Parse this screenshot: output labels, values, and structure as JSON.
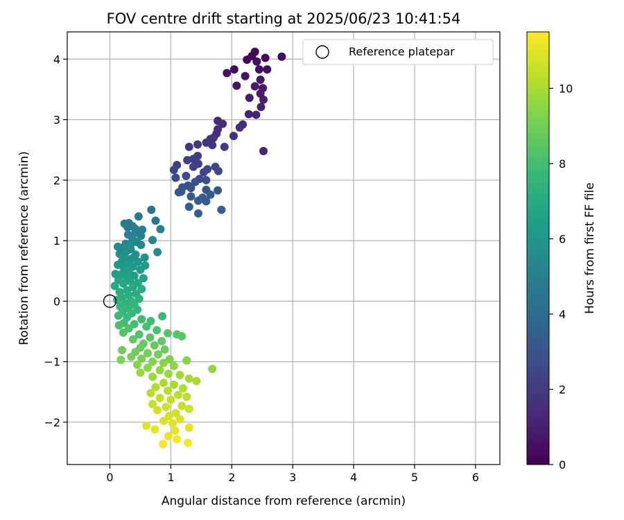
{
  "chart_data": {
    "type": "scatter",
    "title": "FOV centre drift starting at 2025/06/23 10:41:54",
    "xlabel": "Angular distance from reference (arcmin)",
    "ylabel": "Rotation from reference (arcmin)",
    "xlim": [
      -0.7,
      6.4
    ],
    "ylim": [
      -2.7,
      4.45
    ],
    "xticks": [
      0,
      1,
      2,
      3,
      4,
      5,
      6
    ],
    "yticks": [
      -2,
      -1,
      0,
      1,
      2,
      3,
      4
    ],
    "grid": true,
    "legend": {
      "placement": "top-right",
      "entries": [
        "Reference platepar"
      ]
    },
    "reference_point": {
      "x": 0,
      "y": 0,
      "label": "Reference platepar"
    },
    "colorbar": {
      "label": "Hours from first FF file",
      "colormap": "viridis",
      "range": [
        0,
        11.5
      ],
      "ticks": [
        0,
        2,
        4,
        6,
        8,
        10
      ]
    },
    "colormap_stops": [
      "#440154",
      "#482878",
      "#3e4989",
      "#31688e",
      "#26828e",
      "#1f9e89",
      "#35b779",
      "#6ece58",
      "#b5de2b",
      "#fde725"
    ],
    "points": [
      {
        "x": 2.38,
        "y": 4.12,
        "t": 0.1
      },
      {
        "x": 2.33,
        "y": 4.05,
        "t": 0.2
      },
      {
        "x": 2.25,
        "y": 3.99,
        "t": 0.2
      },
      {
        "x": 2.82,
        "y": 4.04,
        "t": 0.3
      },
      {
        "x": 2.55,
        "y": 4.02,
        "t": 0.3
      },
      {
        "x": 2.41,
        "y": 3.96,
        "t": 0.4
      },
      {
        "x": 2.04,
        "y": 3.83,
        "t": 0.4
      },
      {
        "x": 2.45,
        "y": 3.83,
        "t": 0.5
      },
      {
        "x": 2.58,
        "y": 3.83,
        "t": 0.5
      },
      {
        "x": 1.92,
        "y": 3.77,
        "t": 0.6
      },
      {
        "x": 2.22,
        "y": 3.72,
        "t": 0.6
      },
      {
        "x": 2.47,
        "y": 3.66,
        "t": 0.7
      },
      {
        "x": 2.08,
        "y": 3.56,
        "t": 0.7
      },
      {
        "x": 2.38,
        "y": 3.55,
        "t": 0.8
      },
      {
        "x": 2.51,
        "y": 3.52,
        "t": 0.8
      },
      {
        "x": 2.47,
        "y": 3.43,
        "t": 0.9
      },
      {
        "x": 2.29,
        "y": 3.36,
        "t": 0.9
      },
      {
        "x": 2.52,
        "y": 3.33,
        "t": 1.0
      },
      {
        "x": 2.48,
        "y": 3.21,
        "t": 1.0
      },
      {
        "x": 2.28,
        "y": 3.09,
        "t": 1.1
      },
      {
        "x": 2.4,
        "y": 3.08,
        "t": 1.1
      },
      {
        "x": 2.52,
        "y": 2.48,
        "t": 1.2
      },
      {
        "x": 1.77,
        "y": 2.98,
        "t": 1.3
      },
      {
        "x": 1.85,
        "y": 2.93,
        "t": 1.4
      },
      {
        "x": 2.18,
        "y": 2.92,
        "t": 1.4
      },
      {
        "x": 2.13,
        "y": 2.87,
        "t": 1.5
      },
      {
        "x": 1.77,
        "y": 2.84,
        "t": 1.5
      },
      {
        "x": 2.03,
        "y": 2.73,
        "t": 1.6
      },
      {
        "x": 1.75,
        "y": 2.77,
        "t": 1.6
      },
      {
        "x": 1.7,
        "y": 2.7,
        "t": 1.7
      },
      {
        "x": 1.65,
        "y": 2.68,
        "t": 1.7
      },
      {
        "x": 1.58,
        "y": 2.62,
        "t": 1.8
      },
      {
        "x": 1.68,
        "y": 2.58,
        "t": 1.8
      },
      {
        "x": 1.44,
        "y": 2.59,
        "t": 1.9
      },
      {
        "x": 1.3,
        "y": 2.55,
        "t": 1.9
      },
      {
        "x": 1.88,
        "y": 2.55,
        "t": 2.0
      },
      {
        "x": 1.44,
        "y": 2.4,
        "t": 2.0
      },
      {
        "x": 1.37,
        "y": 2.35,
        "t": 2.1
      },
      {
        "x": 1.1,
        "y": 2.25,
        "t": 2.1
      },
      {
        "x": 1.27,
        "y": 2.33,
        "t": 2.2
      },
      {
        "x": 1.45,
        "y": 2.27,
        "t": 2.2
      },
      {
        "x": 1.37,
        "y": 2.22,
        "t": 2.3
      },
      {
        "x": 1.05,
        "y": 2.17,
        "t": 2.3
      },
      {
        "x": 1.73,
        "y": 2.22,
        "t": 2.4
      },
      {
        "x": 1.6,
        "y": 2.18,
        "t": 2.4
      },
      {
        "x": 1.78,
        "y": 2.15,
        "t": 2.5
      },
      {
        "x": 1.54,
        "y": 2.13,
        "t": 2.5
      },
      {
        "x": 1.25,
        "y": 2.07,
        "t": 2.6
      },
      {
        "x": 1.08,
        "y": 2.04,
        "t": 2.6
      },
      {
        "x": 1.47,
        "y": 2.02,
        "t": 2.7
      },
      {
        "x": 1.58,
        "y": 2.0,
        "t": 2.7
      },
      {
        "x": 1.4,
        "y": 1.97,
        "t": 2.8
      },
      {
        "x": 1.28,
        "y": 1.91,
        "t": 2.8
      },
      {
        "x": 1.19,
        "y": 1.88,
        "t": 2.9
      },
      {
        "x": 1.33,
        "y": 1.87,
        "t": 2.9
      },
      {
        "x": 1.58,
        "y": 1.84,
        "t": 3.0
      },
      {
        "x": 1.77,
        "y": 1.83,
        "t": 3.0
      },
      {
        "x": 1.17,
        "y": 1.81,
        "t": 3.1
      },
      {
        "x": 1.13,
        "y": 1.8,
        "t": 3.1
      },
      {
        "x": 1.65,
        "y": 1.76,
        "t": 3.2
      },
      {
        "x": 1.33,
        "y": 1.73,
        "t": 3.2
      },
      {
        "x": 1.52,
        "y": 1.71,
        "t": 3.3
      },
      {
        "x": 1.45,
        "y": 1.66,
        "t": 3.3
      },
      {
        "x": 1.58,
        "y": 1.65,
        "t": 3.4
      },
      {
        "x": 1.3,
        "y": 1.56,
        "t": 3.4
      },
      {
        "x": 1.83,
        "y": 1.51,
        "t": 3.5
      },
      {
        "x": 1.45,
        "y": 1.45,
        "t": 3.5
      },
      {
        "x": 0.68,
        "y": 1.51,
        "t": 4.5
      },
      {
        "x": 0.47,
        "y": 1.4,
        "t": 4.6
      },
      {
        "x": 0.75,
        "y": 1.33,
        "t": 4.6
      },
      {
        "x": 0.24,
        "y": 1.28,
        "t": 4.7
      },
      {
        "x": 0.31,
        "y": 1.29,
        "t": 4.7
      },
      {
        "x": 0.37,
        "y": 1.24,
        "t": 4.8
      },
      {
        "x": 0.29,
        "y": 1.22,
        "t": 4.8
      },
      {
        "x": 0.53,
        "y": 1.18,
        "t": 4.9
      },
      {
        "x": 0.41,
        "y": 1.2,
        "t": 4.9
      },
      {
        "x": 0.83,
        "y": 1.19,
        "t": 5.0
      },
      {
        "x": 0.42,
        "y": 1.13,
        "t": 5.0
      },
      {
        "x": 0.3,
        "y": 1.1,
        "t": 5.1
      },
      {
        "x": 0.51,
        "y": 1.08,
        "t": 5.1
      },
      {
        "x": 0.37,
        "y": 1.03,
        "t": 5.2
      },
      {
        "x": 0.7,
        "y": 1.01,
        "t": 5.2
      },
      {
        "x": 0.44,
        "y": 0.98,
        "t": 5.3
      },
      {
        "x": 0.26,
        "y": 0.95,
        "t": 5.3
      },
      {
        "x": 0.35,
        "y": 0.95,
        "t": 5.4
      },
      {
        "x": 0.51,
        "y": 0.93,
        "t": 5.4
      },
      {
        "x": 0.13,
        "y": 0.9,
        "t": 5.5
      },
      {
        "x": 0.2,
        "y": 0.88,
        "t": 5.5
      },
      {
        "x": 0.34,
        "y": 0.86,
        "t": 5.6
      },
      {
        "x": 0.28,
        "y": 0.83,
        "t": 5.6
      },
      {
        "x": 0.78,
        "y": 0.81,
        "t": 5.7
      },
      {
        "x": 0.16,
        "y": 0.78,
        "t": 5.7
      },
      {
        "x": 0.42,
        "y": 0.77,
        "t": 5.8
      },
      {
        "x": 0.24,
        "y": 0.73,
        "t": 5.8
      },
      {
        "x": 0.57,
        "y": 0.72,
        "t": 5.9
      },
      {
        "x": 0.35,
        "y": 0.7,
        "t": 5.9
      },
      {
        "x": 0.2,
        "y": 0.66,
        "t": 6.0
      },
      {
        "x": 0.46,
        "y": 0.65,
        "t": 6.0
      },
      {
        "x": 0.3,
        "y": 0.62,
        "t": 6.1
      },
      {
        "x": 0.13,
        "y": 0.6,
        "t": 6.1
      },
      {
        "x": 0.58,
        "y": 0.59,
        "t": 6.2
      },
      {
        "x": 0.38,
        "y": 0.57,
        "t": 6.2
      },
      {
        "x": 0.23,
        "y": 0.54,
        "t": 6.3
      },
      {
        "x": 0.5,
        "y": 0.52,
        "t": 6.3
      },
      {
        "x": 0.31,
        "y": 0.48,
        "t": 6.4
      },
      {
        "x": 0.09,
        "y": 0.45,
        "t": 6.4
      },
      {
        "x": 0.18,
        "y": 0.44,
        "t": 6.5
      },
      {
        "x": 0.4,
        "y": 0.42,
        "t": 6.5
      },
      {
        "x": 0.27,
        "y": 0.4,
        "t": 6.6
      },
      {
        "x": 0.55,
        "y": 0.38,
        "t": 6.6
      },
      {
        "x": 0.14,
        "y": 0.35,
        "t": 6.7
      },
      {
        "x": 0.33,
        "y": 0.33,
        "t": 6.7
      },
      {
        "x": 0.46,
        "y": 0.3,
        "t": 6.8
      },
      {
        "x": 0.22,
        "y": 0.29,
        "t": 6.8
      },
      {
        "x": 0.08,
        "y": 0.25,
        "t": 6.9
      },
      {
        "x": 0.38,
        "y": 0.23,
        "t": 6.9
      },
      {
        "x": 0.52,
        "y": 0.2,
        "t": 7.0
      },
      {
        "x": 0.28,
        "y": 0.18,
        "t": 7.0
      },
      {
        "x": 0.16,
        "y": 0.15,
        "t": 7.1
      },
      {
        "x": 0.43,
        "y": 0.12,
        "t": 7.1
      },
      {
        "x": 0.31,
        "y": 0.1,
        "t": 7.2
      },
      {
        "x": 0.2,
        "y": 0.06,
        "t": 7.2
      },
      {
        "x": 0.48,
        "y": 0.04,
        "t": 7.3
      },
      {
        "x": 0.12,
        "y": 0.02,
        "t": 7.3
      },
      {
        "x": 0.35,
        "y": 0.0,
        "t": 7.4
      },
      {
        "x": 0.25,
        "y": -0.03,
        "t": 7.4
      },
      {
        "x": 0.4,
        "y": -0.06,
        "t": 7.5
      },
      {
        "x": 0.17,
        "y": -0.09,
        "t": 7.5
      },
      {
        "x": 0.3,
        "y": -0.12,
        "t": 7.6
      },
      {
        "x": 0.45,
        "y": -0.14,
        "t": 7.6
      },
      {
        "x": 0.21,
        "y": -0.18,
        "t": 7.7
      },
      {
        "x": 0.36,
        "y": -0.2,
        "t": 7.7
      },
      {
        "x": 0.14,
        "y": -0.24,
        "t": 7.8
      },
      {
        "x": 0.28,
        "y": -0.27,
        "t": 7.8
      },
      {
        "x": 0.86,
        "y": -0.25,
        "t": 7.8
      },
      {
        "x": 0.52,
        "y": -0.3,
        "t": 7.9
      },
      {
        "x": 0.67,
        "y": -0.33,
        "t": 7.9
      },
      {
        "x": 0.23,
        "y": -0.36,
        "t": 8.0
      },
      {
        "x": 0.4,
        "y": -0.38,
        "t": 8.0
      },
      {
        "x": 0.15,
        "y": -0.4,
        "t": 8.1
      },
      {
        "x": 0.6,
        "y": -0.42,
        "t": 8.1
      },
      {
        "x": 0.31,
        "y": -0.45,
        "t": 8.2
      },
      {
        "x": 0.77,
        "y": -0.48,
        "t": 8.2
      },
      {
        "x": 0.22,
        "y": -0.52,
        "t": 8.3
      },
      {
        "x": 0.48,
        "y": -0.55,
        "t": 8.3
      },
      {
        "x": 0.95,
        "y": -0.53,
        "t": 8.4
      },
      {
        "x": 1.1,
        "y": -0.55,
        "t": 8.4
      },
      {
        "x": 1.18,
        "y": -0.58,
        "t": 8.5
      },
      {
        "x": 0.66,
        "y": -0.6,
        "t": 8.5
      },
      {
        "x": 0.38,
        "y": -0.63,
        "t": 8.6
      },
      {
        "x": 0.85,
        "y": -0.66,
        "t": 8.6
      },
      {
        "x": 0.55,
        "y": -0.7,
        "t": 8.7
      },
      {
        "x": 0.73,
        "y": -0.73,
        "t": 8.7
      },
      {
        "x": 0.5,
        "y": -0.77,
        "t": 8.8
      },
      {
        "x": 0.9,
        "y": -0.8,
        "t": 8.8
      },
      {
        "x": 0.2,
        "y": -0.81,
        "t": 8.9
      },
      {
        "x": 0.42,
        "y": -0.84,
        "t": 8.9
      },
      {
        "x": 0.62,
        "y": -0.86,
        "t": 9.0
      },
      {
        "x": 0.79,
        "y": -0.88,
        "t": 9.0
      },
      {
        "x": 0.35,
        "y": -0.92,
        "t": 9.1
      },
      {
        "x": 0.52,
        "y": -0.95,
        "t": 9.1
      },
      {
        "x": 0.18,
        "y": -0.97,
        "t": 9.2
      },
      {
        "x": 0.98,
        "y": -0.96,
        "t": 9.2
      },
      {
        "x": 1.26,
        "y": -0.98,
        "t": 9.3
      },
      {
        "x": 0.7,
        "y": -1.0,
        "t": 9.3
      },
      {
        "x": 0.88,
        "y": -1.02,
        "t": 9.4
      },
      {
        "x": 0.45,
        "y": -1.05,
        "t": 9.4
      },
      {
        "x": 1.05,
        "y": -1.07,
        "t": 9.5
      },
      {
        "x": 0.62,
        "y": -1.1,
        "t": 9.5
      },
      {
        "x": 1.68,
        "y": -1.12,
        "t": 9.6
      },
      {
        "x": 0.82,
        "y": -1.14,
        "t": 9.6
      },
      {
        "x": 0.5,
        "y": -1.18,
        "t": 9.7
      },
      {
        "x": 0.96,
        "y": -1.2,
        "t": 9.7
      },
      {
        "x": 1.15,
        "y": -1.22,
        "t": 9.8
      },
      {
        "x": 0.7,
        "y": -1.25,
        "t": 9.8
      },
      {
        "x": 1.3,
        "y": -1.28,
        "t": 9.9
      },
      {
        "x": 1.42,
        "y": -1.32,
        "t": 9.9
      },
      {
        "x": 0.88,
        "y": -1.35,
        "t": 10.0
      },
      {
        "x": 1.05,
        "y": -1.38,
        "t": 10.0
      },
      {
        "x": 0.75,
        "y": -1.42,
        "t": 10.1
      },
      {
        "x": 1.2,
        "y": -1.44,
        "t": 10.1
      },
      {
        "x": 0.95,
        "y": -1.48,
        "t": 10.2
      },
      {
        "x": 0.67,
        "y": -1.52,
        "t": 10.2
      },
      {
        "x": 1.12,
        "y": -1.55,
        "t": 10.3
      },
      {
        "x": 1.26,
        "y": -1.58,
        "t": 10.3
      },
      {
        "x": 0.82,
        "y": -1.6,
        "t": 10.4
      },
      {
        "x": 1.0,
        "y": -1.63,
        "t": 10.4
      },
      {
        "x": 0.7,
        "y": -1.7,
        "t": 10.5
      },
      {
        "x": 1.18,
        "y": -1.73,
        "t": 10.5
      },
      {
        "x": 0.92,
        "y": -1.75,
        "t": 10.6
      },
      {
        "x": 1.3,
        "y": -1.78,
        "t": 10.6
      },
      {
        "x": 0.78,
        "y": -1.8,
        "t": 10.7
      },
      {
        "x": 1.08,
        "y": -1.85,
        "t": 10.7
      },
      {
        "x": 0.97,
        "y": -1.9,
        "t": 10.8
      },
      {
        "x": 1.15,
        "y": -1.95,
        "t": 10.8
      },
      {
        "x": 0.88,
        "y": -1.98,
        "t": 10.9
      },
      {
        "x": 1.03,
        "y": -2.02,
        "t": 10.9
      },
      {
        "x": 0.6,
        "y": -2.06,
        "t": 11.0
      },
      {
        "x": 1.3,
        "y": -2.09,
        "t": 11.0
      },
      {
        "x": 0.74,
        "y": -2.12,
        "t": 11.1
      },
      {
        "x": 1.07,
        "y": -2.14,
        "t": 11.1
      },
      {
        "x": 0.96,
        "y": -2.23,
        "t": 11.2
      },
      {
        "x": 1.1,
        "y": -2.28,
        "t": 11.3
      },
      {
        "x": 1.28,
        "y": -2.34,
        "t": 11.3
      },
      {
        "x": 0.87,
        "y": -2.36,
        "t": 11.4
      }
    ]
  }
}
